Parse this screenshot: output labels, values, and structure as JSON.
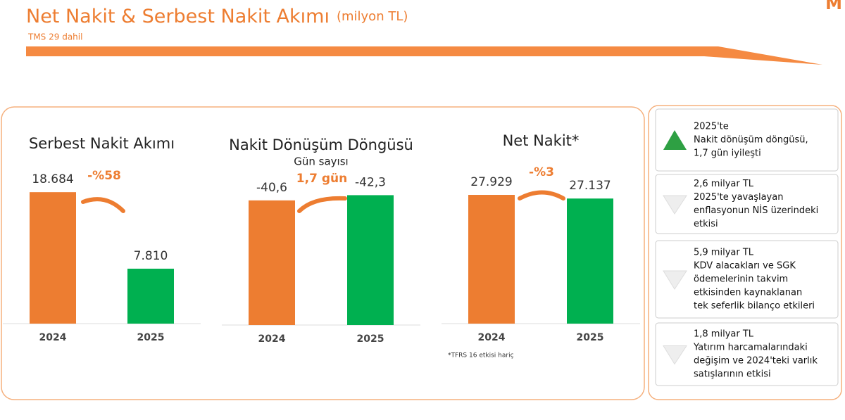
{
  "header": {
    "title": "Net Nakit & Serbest Nakit Akımı",
    "unit": "(milyon TL)",
    "subtitle": "TMS 29 dahil",
    "logo": "M"
  },
  "chart_data": [
    {
      "type": "bar",
      "title": "Serbest Nakit Akımı",
      "categories": [
        "2024",
        "2025"
      ],
      "values": [
        18684,
        7810
      ],
      "value_labels": [
        "18.684",
        "7.810"
      ],
      "colors": [
        "#ed7d31",
        "#00b050"
      ],
      "ylim": [
        0,
        19000
      ],
      "annotation": "-%58"
    },
    {
      "type": "bar",
      "title": "Nakit Dönüşüm Döngüsü",
      "subtitle": "Gün sayısı",
      "categories": [
        "2024",
        "2025"
      ],
      "values": [
        -40.6,
        -42.3
      ],
      "value_labels": [
        "-40,6",
        "-42,3"
      ],
      "colors": [
        "#ed7d31",
        "#00b050"
      ],
      "ylim": [
        0,
        -44
      ],
      "annotation": "1,7 gün"
    },
    {
      "type": "bar",
      "title": "Net Nakit*",
      "categories": [
        "2024",
        "2025"
      ],
      "values": [
        27929,
        27137
      ],
      "value_labels": [
        "27.929",
        "27.137"
      ],
      "colors": [
        "#ed7d31",
        "#00b050"
      ],
      "ylim": [
        0,
        29000
      ],
      "annotation": "-%3"
    }
  ],
  "footnote": "*TFRS 16 etkisi hariç",
  "notes": [
    {
      "icon": "up",
      "lines": [
        "2025'te",
        "Nakit dönüşüm döngüsü,",
        "1,7 gün iyileşti"
      ]
    },
    {
      "icon": "down",
      "lines": [
        "2,6 milyar TL",
        "2025'te yavaşlayan",
        "enflasyonun NİS üzerindeki",
        "etkisi"
      ]
    },
    {
      "icon": "down",
      "lines": [
        "5,9 milyar TL",
        "KDV alacakları ve SGK",
        "ödemelerinin takvim",
        "etkisinden kaynaklanan",
        "tek seferlik bilanço etkileri"
      ]
    },
    {
      "icon": "down",
      "lines": [
        "1,8 milyar TL",
        "Yatırım harcamalarındaki",
        "değişim ve 2024'teki varlık",
        "satışlarının etkisi"
      ]
    }
  ]
}
